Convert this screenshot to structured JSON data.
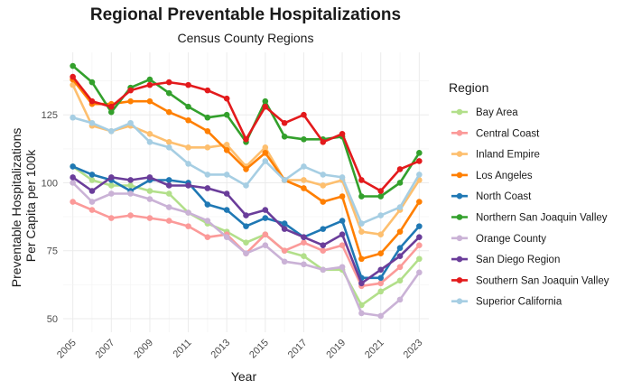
{
  "chart_data": {
    "type": "line",
    "title": "Regional Preventable Hospitalizations",
    "subtitle": "Census County Regions",
    "xlabel": "Year",
    "ylabel_lines": [
      "Preventable Hospitalizations",
      "Per Capita per 100k"
    ],
    "xlim": [
      2004.5,
      2023.5
    ],
    "ylim": [
      45,
      148
    ],
    "x_ticks": [
      2005,
      2007,
      2009,
      2011,
      2013,
      2015,
      2017,
      2019,
      2021,
      2023
    ],
    "y_ticks": [
      50,
      75,
      100,
      125
    ],
    "grid": true,
    "legend_title": "Region",
    "legend_position": "right",
    "x": [
      2005,
      2006,
      2007,
      2008,
      2009,
      2010,
      2011,
      2012,
      2013,
      2014,
      2015,
      2016,
      2017,
      2018,
      2019,
      2020,
      2021,
      2022,
      2023
    ],
    "series": [
      {
        "name": "Bay Area",
        "color": "#b2df8a",
        "values": [
          106,
          101,
          99,
          99,
          97,
          96,
          89,
          85,
          82,
          78,
          81,
          75,
          73,
          68,
          68,
          55,
          60,
          64,
          72
        ]
      },
      {
        "name": "Central Coast",
        "color": "#fb9a99",
        "values": [
          93,
          90,
          87,
          88,
          87,
          86,
          84,
          80,
          81,
          74,
          81,
          75,
          78,
          75,
          77,
          62,
          63,
          69,
          77
        ]
      },
      {
        "name": "Inland Empire",
        "color": "#fdbf6f",
        "values": [
          136,
          121,
          119,
          121,
          118,
          115,
          113,
          113,
          114,
          106,
          113,
          101,
          101,
          99,
          101,
          82,
          81,
          90,
          101
        ]
      },
      {
        "name": "Los Angeles",
        "color": "#ff7f00",
        "values": [
          138,
          129,
          129,
          130,
          130,
          126,
          123,
          119,
          112,
          105,
          111,
          101,
          98,
          93,
          95,
          72,
          74,
          82,
          93
        ]
      },
      {
        "name": "North Coast",
        "color": "#1f78b4",
        "values": [
          106,
          103,
          101,
          97,
          101,
          101,
          100,
          92,
          90,
          84,
          87,
          85,
          80,
          83,
          86,
          65,
          65,
          76,
          84
        ]
      },
      {
        "name": "Northern San Joaquin Valley",
        "color": "#33a02c",
        "values": [
          143,
          137,
          126,
          135,
          138,
          133,
          128,
          124,
          125,
          115,
          130,
          117,
          116,
          116,
          117,
          95,
          95,
          100,
          111
        ]
      },
      {
        "name": "Orange County",
        "color": "#cab2d6",
        "values": [
          100,
          93,
          96,
          96,
          94,
          91,
          89,
          86,
          80,
          74,
          77,
          71,
          70,
          68,
          69,
          52,
          51,
          57,
          67
        ]
      },
      {
        "name": "San Diego Region",
        "color": "#6a3d9a",
        "values": [
          102,
          97,
          102,
          101,
          102,
          99,
          99,
          98,
          96,
          88,
          90,
          83,
          80,
          77,
          81,
          63,
          68,
          73,
          80
        ]
      },
      {
        "name": "Southern San Joaquin Valley",
        "color": "#e31a1c",
        "values": [
          139,
          130,
          128,
          134,
          136,
          137,
          136,
          134,
          131,
          116,
          128,
          122,
          125,
          115,
          118,
          101,
          97,
          105,
          108
        ]
      },
      {
        "name": "Superior California",
        "color": "#a6cee3",
        "values": [
          124,
          122,
          119,
          122,
          115,
          113,
          107,
          103,
          103,
          99,
          108,
          101,
          106,
          103,
          102,
          85,
          88,
          91,
          103
        ]
      }
    ]
  }
}
